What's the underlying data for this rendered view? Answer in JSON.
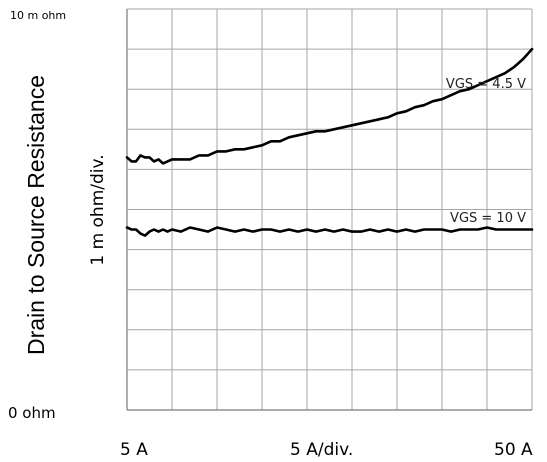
{
  "chart_data": {
    "type": "line",
    "ylabel": "Drain to Source Resistance",
    "y_div_label": "1 m ohm/div.",
    "y_top_label": "10 m ohm",
    "y_bottom_label": "0  ohm",
    "x_left_label": "5  A",
    "x_div_label": "5  A/div.",
    "x_right_label": "50  A",
    "xlim": [
      5,
      50
    ],
    "ylim": [
      0,
      10
    ],
    "grid": true,
    "x_divisions": 9,
    "y_divisions": 10,
    "series": [
      {
        "name": "VGS = 4.5 V",
        "x": [
          5,
          5.5,
          6,
          6.5,
          7,
          7.5,
          8,
          8.5,
          9,
          9.5,
          10,
          11,
          12,
          13,
          14,
          15,
          16,
          17,
          18,
          19,
          20,
          21,
          22,
          23,
          24,
          25,
          26,
          27,
          28,
          29,
          30,
          31,
          32,
          33,
          34,
          35,
          36,
          37,
          38,
          39,
          40,
          41,
          42,
          43,
          44,
          45,
          46,
          47,
          48,
          49,
          50
        ],
        "y": [
          6.3,
          6.2,
          6.2,
          6.35,
          6.3,
          6.3,
          6.2,
          6.25,
          6.15,
          6.2,
          6.25,
          6.25,
          6.25,
          6.35,
          6.35,
          6.45,
          6.45,
          6.5,
          6.5,
          6.55,
          6.6,
          6.7,
          6.7,
          6.8,
          6.85,
          6.9,
          6.95,
          6.95,
          7.0,
          7.05,
          7.1,
          7.15,
          7.2,
          7.25,
          7.3,
          7.4,
          7.45,
          7.55,
          7.6,
          7.7,
          7.75,
          7.85,
          7.95,
          8.0,
          8.1,
          8.2,
          8.3,
          8.4,
          8.55,
          8.75,
          9.0
        ]
      },
      {
        "name": "VGS = 10 V",
        "x": [
          5,
          5.5,
          6,
          6.5,
          7,
          7.5,
          8,
          8.5,
          9,
          9.5,
          10,
          11,
          12,
          13,
          14,
          15,
          16,
          17,
          18,
          19,
          20,
          21,
          22,
          23,
          24,
          25,
          26,
          27,
          28,
          29,
          30,
          31,
          32,
          33,
          34,
          35,
          36,
          37,
          38,
          39,
          40,
          41,
          42,
          43,
          44,
          45,
          46,
          47,
          48,
          49,
          50
        ],
        "y": [
          4.55,
          4.5,
          4.5,
          4.4,
          4.35,
          4.45,
          4.5,
          4.45,
          4.5,
          4.45,
          4.5,
          4.45,
          4.55,
          4.5,
          4.45,
          4.55,
          4.5,
          4.45,
          4.5,
          4.45,
          4.5,
          4.5,
          4.45,
          4.5,
          4.45,
          4.5,
          4.45,
          4.5,
          4.45,
          4.5,
          4.45,
          4.45,
          4.5,
          4.45,
          4.5,
          4.45,
          4.5,
          4.45,
          4.5,
          4.5,
          4.5,
          4.45,
          4.5,
          4.5,
          4.5,
          4.55,
          4.5,
          4.5,
          4.5,
          4.5,
          4.5
        ]
      }
    ]
  }
}
